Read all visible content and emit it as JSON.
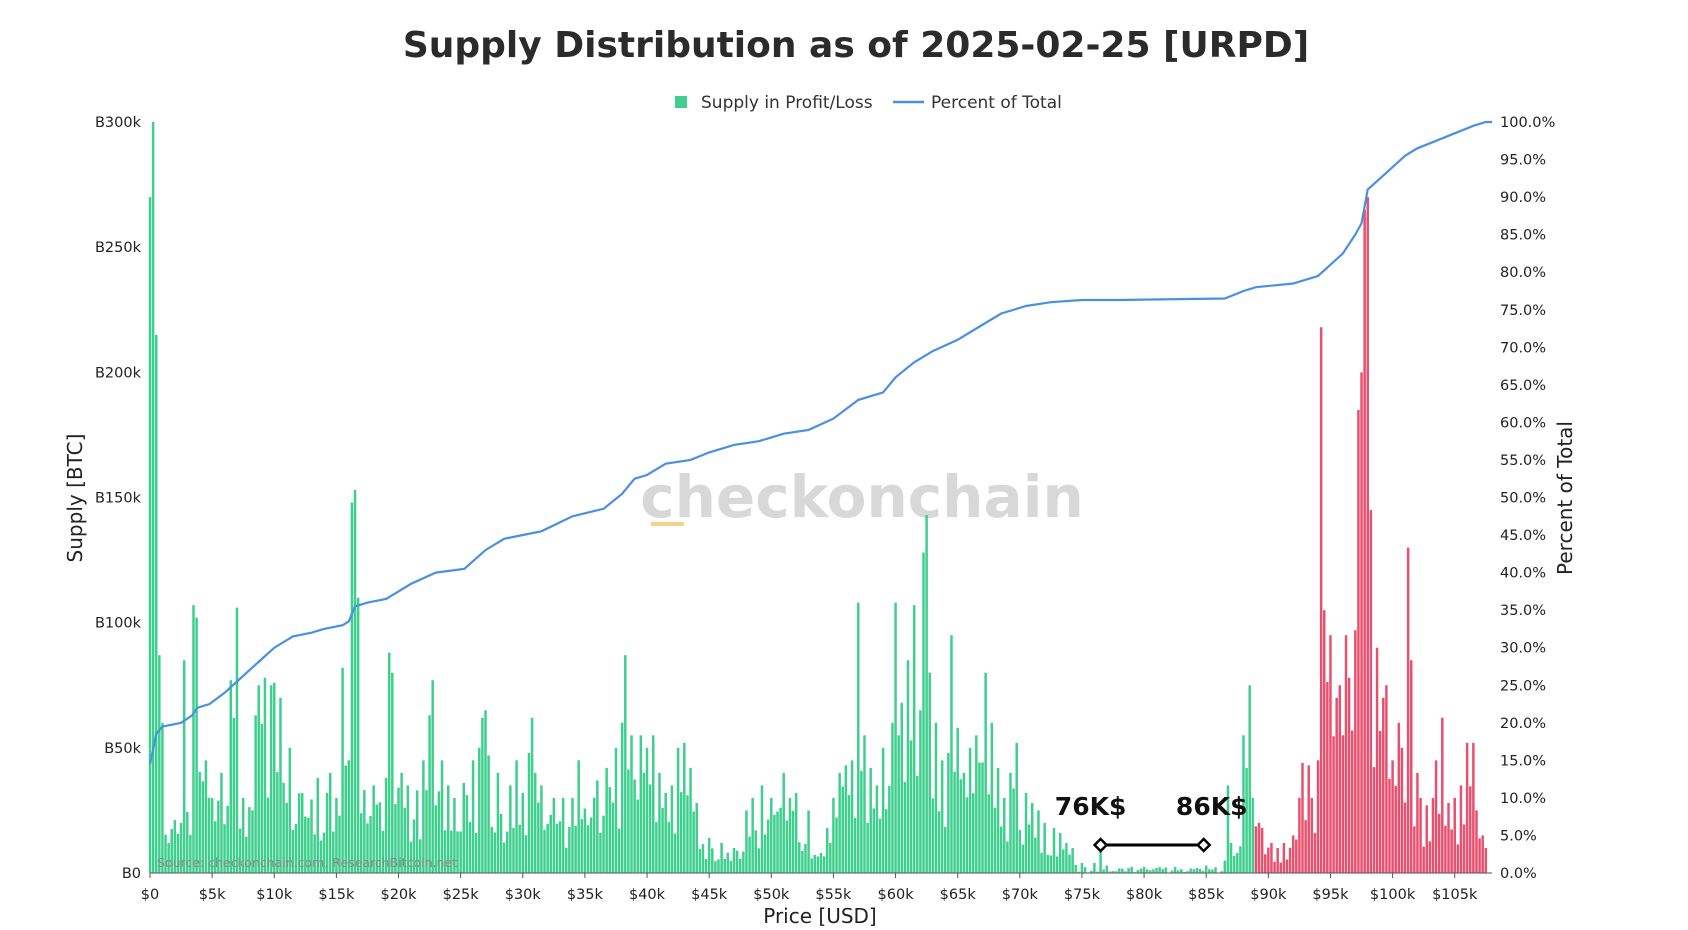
{
  "chart_data": {
    "type": "bar",
    "title": "Supply Distribution as of 2025-02-25 [URPD]",
    "xlabel": "Price [USD]",
    "ylabel": "Supply [BTC]",
    "y2label": "Percent of Total",
    "xlim": [
      0,
      108000
    ],
    "ylim": [
      0,
      300000
    ],
    "y2lim": [
      0,
      100
    ],
    "x_ticks": [
      "$0",
      "$5k",
      "$10k",
      "$15k",
      "$20k",
      "$25k",
      "$30k",
      "$35k",
      "$40k",
      "$45k",
      "$50k",
      "$55k",
      "$60k",
      "$65k",
      "$70k",
      "$75k",
      "$80k",
      "$85k",
      "$90k",
      "$95k",
      "$100k",
      "$105k"
    ],
    "y_ticks": [
      "B0",
      "B50k",
      "B100k",
      "B150k",
      "B200k",
      "B250k",
      "B300k"
    ],
    "y2_ticks": [
      "0.0%",
      "5.0%",
      "10.0%",
      "15.0%",
      "20.0%",
      "25.0%",
      "30.0%",
      "35.0%",
      "40.0%",
      "45.0%",
      "50.0%",
      "55.0%",
      "60.0%",
      "65.0%",
      "70.0%",
      "75.0%",
      "80.0%",
      "85.0%",
      "90.0%",
      "95.0%",
      "100.0%"
    ],
    "legend": {
      "position": "top-center",
      "items": [
        {
          "label": "Supply in Profit/Loss",
          "type": "square",
          "color": "#3ecf8e"
        },
        {
          "label": "Percent of Total",
          "type": "line",
          "color": "#4a90e2"
        }
      ]
    },
    "bar_colors": {
      "profit": "#3ecf8e",
      "loss": "#e8506f"
    },
    "profit_loss_split_price": 89000,
    "bar_width_price": 250,
    "grid": false,
    "watermark": "checkonchain",
    "source": "Source: checkonchain.com, ResearchBitcoin.net",
    "annotations": [
      {
        "label": "76K$",
        "price": 76000
      },
      {
        "label": "86K$",
        "price": 86000
      }
    ],
    "bars_major": [
      [
        0,
        45000
      ],
      [
        100,
        270000
      ],
      [
        250,
        300000
      ],
      [
        400,
        300000
      ],
      [
        550,
        215000
      ],
      [
        700,
        100000
      ],
      [
        850,
        87000
      ],
      [
        1000,
        60000
      ],
      [
        2500,
        20000
      ],
      [
        2800,
        85000
      ],
      [
        3500,
        30000
      ],
      [
        3600,
        107000
      ],
      [
        3800,
        102000
      ],
      [
        4500,
        45000
      ],
      [
        5700,
        40000
      ],
      [
        6400,
        77000
      ],
      [
        6800,
        62000
      ],
      [
        7100,
        106000
      ],
      [
        7500,
        30000
      ],
      [
        8400,
        63000
      ],
      [
        8800,
        75000
      ],
      [
        9300,
        78000
      ],
      [
        9700,
        75000
      ],
      [
        10100,
        76000
      ],
      [
        10600,
        70000
      ],
      [
        11300,
        50000
      ],
      [
        13600,
        38000
      ],
      [
        14200,
        32000
      ],
      [
        14600,
        40000
      ],
      [
        15000,
        30000
      ],
      [
        15500,
        82000
      ],
      [
        16100,
        45000
      ],
      [
        16300,
        148000
      ],
      [
        16500,
        153000
      ],
      [
        16700,
        110000
      ],
      [
        18000,
        35000
      ],
      [
        19000,
        38000
      ],
      [
        19200,
        88000
      ],
      [
        19500,
        80000
      ],
      [
        20200,
        40000
      ],
      [
        20800,
        35000
      ],
      [
        21500,
        33000
      ],
      [
        22000,
        45000
      ],
      [
        22400,
        63000
      ],
      [
        22700,
        77000
      ],
      [
        23400,
        45000
      ],
      [
        24000,
        35000
      ],
      [
        24500,
        30000
      ],
      [
        25200,
        36000
      ],
      [
        26000,
        45000
      ],
      [
        26500,
        50000
      ],
      [
        26800,
        62000
      ],
      [
        27000,
        65000
      ],
      [
        27300,
        47000
      ],
      [
        28000,
        40000
      ],
      [
        29000,
        35000
      ],
      [
        29500,
        45000
      ],
      [
        30000,
        32000
      ],
      [
        30400,
        48000
      ],
      [
        30700,
        62000
      ],
      [
        31000,
        40000
      ],
      [
        31500,
        35000
      ],
      [
        32500,
        30000
      ],
      [
        33200,
        30000
      ],
      [
        34000,
        30000
      ],
      [
        34500,
        45000
      ],
      [
        36000,
        37000
      ],
      [
        36800,
        42000
      ],
      [
        37500,
        50000
      ],
      [
        38000,
        60000
      ],
      [
        38300,
        87000
      ],
      [
        38700,
        55000
      ],
      [
        39500,
        55000
      ],
      [
        40000,
        50000
      ],
      [
        40400,
        55000
      ],
      [
        41000,
        40000
      ],
      [
        42000,
        35000
      ],
      [
        42400,
        50000
      ],
      [
        43000,
        52000
      ],
      [
        43500,
        42000
      ],
      [
        44000,
        28000
      ],
      [
        45000,
        14000
      ],
      [
        46000,
        12000
      ],
      [
        47000,
        10000
      ],
      [
        48000,
        25000
      ],
      [
        48500,
        30000
      ],
      [
        49200,
        35000
      ],
      [
        50000,
        30000
      ],
      [
        51000,
        40000
      ],
      [
        51500,
        30000
      ],
      [
        52000,
        32000
      ],
      [
        53000,
        25000
      ],
      [
        54000,
        8000
      ],
      [
        54500,
        18000
      ],
      [
        55000,
        30000
      ],
      [
        55500,
        40000
      ],
      [
        56000,
        43000
      ],
      [
        56500,
        45000
      ],
      [
        57000,
        108000
      ],
      [
        57500,
        55000
      ],
      [
        58000,
        42000
      ],
      [
        58500,
        35000
      ],
      [
        59000,
        50000
      ],
      [
        59700,
        60000
      ],
      [
        60100,
        108000
      ],
      [
        60300,
        55000
      ],
      [
        60600,
        68000
      ],
      [
        61000,
        85000
      ],
      [
        61300,
        53000
      ],
      [
        61600,
        107000
      ],
      [
        61900,
        65000
      ],
      [
        62200,
        128000
      ],
      [
        62400,
        143000
      ],
      [
        62800,
        80000
      ],
      [
        63200,
        60000
      ],
      [
        63800,
        45000
      ],
      [
        64200,
        48000
      ],
      [
        64500,
        95000
      ],
      [
        65000,
        58000
      ],
      [
        65500,
        40000
      ],
      [
        66000,
        50000
      ],
      [
        66500,
        55000
      ],
      [
        67300,
        80000
      ],
      [
        67800,
        60000
      ],
      [
        68300,
        42000
      ],
      [
        68800,
        30000
      ],
      [
        69300,
        40000
      ],
      [
        69800,
        52000
      ],
      [
        70500,
        32000
      ],
      [
        71000,
        28000
      ],
      [
        71500,
        25000
      ],
      [
        72000,
        20000
      ],
      [
        72700,
        18000
      ],
      [
        73300,
        16000
      ],
      [
        73800,
        12000
      ],
      [
        74300,
        10000
      ],
      [
        75000,
        4000
      ],
      [
        76000,
        4000
      ],
      [
        76500,
        13000
      ],
      [
        77000,
        3000
      ],
      [
        79000,
        2500
      ],
      [
        80000,
        2500
      ],
      [
        81000,
        2000
      ],
      [
        83000,
        1500
      ],
      [
        84000,
        1500
      ],
      [
        85000,
        3000
      ],
      [
        86500,
        5000
      ],
      [
        86700,
        35000
      ],
      [
        87000,
        12000
      ],
      [
        87500,
        8000
      ],
      [
        88000,
        55000
      ],
      [
        88300,
        42000
      ],
      [
        88600,
        75000
      ],
      [
        88800,
        30000
      ],
      [
        89200,
        20000
      ],
      [
        89600,
        18000
      ],
      [
        90200,
        12000
      ],
      [
        90700,
        10000
      ],
      [
        91300,
        12000
      ],
      [
        92000,
        15000
      ],
      [
        92500,
        30000
      ],
      [
        92800,
        44000
      ],
      [
        93200,
        43000
      ],
      [
        93600,
        30000
      ],
      [
        94000,
        45000
      ],
      [
        94300,
        218000
      ],
      [
        94600,
        105000
      ],
      [
        95000,
        95000
      ],
      [
        95400,
        70000
      ],
      [
        95700,
        75000
      ],
      [
        96200,
        95000
      ],
      [
        96600,
        78000
      ],
      [
        97000,
        97000
      ],
      [
        97200,
        185000
      ],
      [
        97500,
        200000
      ],
      [
        97700,
        265000
      ],
      [
        97900,
        270000
      ],
      [
        98200,
        145000
      ],
      [
        98700,
        90000
      ],
      [
        99200,
        70000
      ],
      [
        99600,
        75000
      ],
      [
        100000,
        45000
      ],
      [
        100400,
        60000
      ],
      [
        100800,
        50000
      ],
      [
        101200,
        130000
      ],
      [
        101500,
        85000
      ],
      [
        101900,
        40000
      ],
      [
        102300,
        30000
      ],
      [
        102700,
        27000
      ],
      [
        103200,
        30000
      ],
      [
        103600,
        45000
      ],
      [
        104100,
        62000
      ],
      [
        104500,
        28000
      ],
      [
        105000,
        30000
      ],
      [
        105500,
        35000
      ],
      [
        106000,
        52000
      ],
      [
        106400,
        52000
      ],
      [
        106800,
        25000
      ],
      [
        107200,
        15000
      ],
      [
        107600,
        10000
      ]
    ],
    "percent_line": [
      [
        0,
        14.5
      ],
      [
        200,
        16
      ],
      [
        500,
        18.5
      ],
      [
        1000,
        19.5
      ],
      [
        2500,
        20
      ],
      [
        3400,
        21
      ],
      [
        3800,
        22
      ],
      [
        4800,
        22.5
      ],
      [
        6000,
        24
      ],
      [
        7000,
        25.5
      ],
      [
        8000,
        27
      ],
      [
        9000,
        28.5
      ],
      [
        10000,
        30
      ],
      [
        11500,
        31.5
      ],
      [
        13000,
        32
      ],
      [
        14000,
        32.5
      ],
      [
        15500,
        33
      ],
      [
        16000,
        33.5
      ],
      [
        16500,
        35.5
      ],
      [
        17500,
        36
      ],
      [
        19000,
        36.5
      ],
      [
        20000,
        37.5
      ],
      [
        21000,
        38.5
      ],
      [
        23000,
        40
      ],
      [
        25300,
        40.5
      ],
      [
        27000,
        43
      ],
      [
        28500,
        44.5
      ],
      [
        30000,
        45
      ],
      [
        31500,
        45.5
      ],
      [
        34000,
        47.5
      ],
      [
        36500,
        48.5
      ],
      [
        38000,
        50.5
      ],
      [
        39000,
        52.5
      ],
      [
        40000,
        53
      ],
      [
        41500,
        54.5
      ],
      [
        43500,
        55
      ],
      [
        45000,
        56
      ],
      [
        47000,
        57
      ],
      [
        49000,
        57.5
      ],
      [
        51000,
        58.5
      ],
      [
        53000,
        59
      ],
      [
        55000,
        60.5
      ],
      [
        57000,
        63
      ],
      [
        59000,
        64
      ],
      [
        60000,
        66
      ],
      [
        61500,
        68
      ],
      [
        63000,
        69.5
      ],
      [
        65000,
        71
      ],
      [
        66500,
        72.5
      ],
      [
        68500,
        74.5
      ],
      [
        70500,
        75.5
      ],
      [
        72500,
        76
      ],
      [
        75000,
        76.3
      ],
      [
        78000,
        76.3
      ],
      [
        86500,
        76.5
      ],
      [
        88000,
        77.5
      ],
      [
        89000,
        78
      ],
      [
        92000,
        78.5
      ],
      [
        94000,
        79.5
      ],
      [
        95000,
        81
      ],
      [
        96000,
        82.5
      ],
      [
        97000,
        85
      ],
      [
        97500,
        86.5
      ],
      [
        98000,
        91
      ],
      [
        99000,
        92.5
      ],
      [
        100000,
        94
      ],
      [
        101000,
        95.5
      ],
      [
        102000,
        96.5
      ],
      [
        103500,
        97.5
      ],
      [
        105000,
        98.5
      ],
      [
        106500,
        99.5
      ],
      [
        107500,
        100
      ],
      [
        108000,
        100
      ]
    ]
  }
}
